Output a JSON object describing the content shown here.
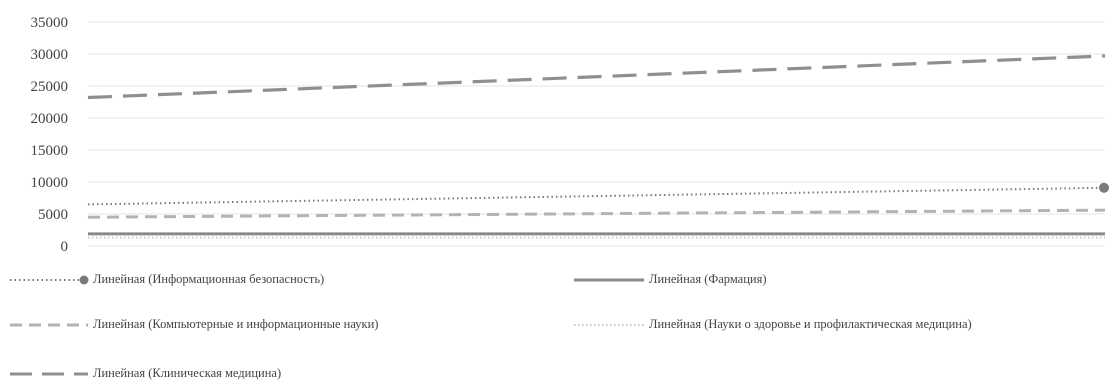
{
  "chart_data": {
    "type": "line",
    "title": "",
    "xlabel": "",
    "ylabel": "",
    "ylim": [
      0,
      35000
    ],
    "yticks": [
      "35000",
      "30000",
      "25000",
      "20000",
      "15000",
      "10000",
      "5000",
      "0"
    ],
    "x": [
      0,
      1
    ],
    "grid": true,
    "legend_position": "bottom",
    "series": [
      {
        "name": "Линейная (Информационная  безопасность)",
        "values": [
          6500,
          9100
        ],
        "color": "#7a7a7a",
        "style": "dotted",
        "end_marker": true
      },
      {
        "name": "Линейная (Фармация)",
        "values": [
          1900,
          1900
        ],
        "color": "#8a8a8a",
        "style": "solid"
      },
      {
        "name": "Линейная (Компьютерные  и информационные  науки)",
        "values": [
          4500,
          5600
        ],
        "color": "#b3b3b3",
        "style": "dashed"
      },
      {
        "name": "Линейная (Науки о здоровье и профилактическая  медицина)",
        "values": [
          1300,
          1300
        ],
        "color": "#c8c8c8",
        "style": "dotted-light"
      },
      {
        "name": "Линейная (Клиническая медицина)",
        "values": [
          23200,
          29700
        ],
        "color": "#8f8f8f",
        "style": "longdash"
      }
    ]
  }
}
